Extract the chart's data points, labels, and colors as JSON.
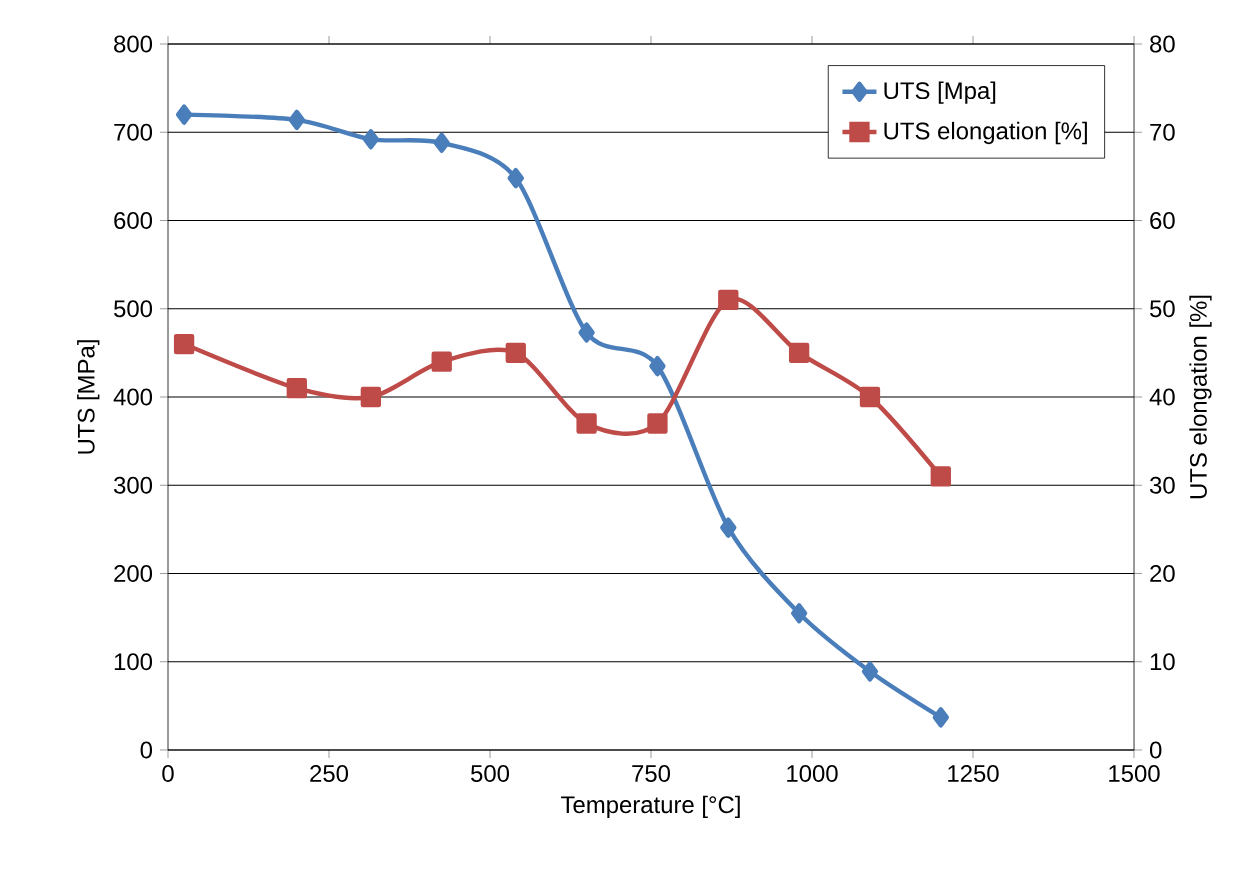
{
  "chart_data": {
    "type": "line",
    "xlabel": "Temperature [°C]",
    "ylabel": "UTS [MPa]",
    "y2label": "UTS elongation [%]",
    "x": [
      25,
      200,
      315,
      425,
      540,
      650,
      760,
      870,
      980,
      1090,
      1200
    ],
    "series": [
      {
        "name": "UTS [Mpa]",
        "color": "#4a7ebb",
        "marker": "diamond",
        "values": [
          720,
          714,
          692,
          688,
          648,
          473,
          435,
          252,
          155,
          89,
          37
        ]
      },
      {
        "name": "UTS elongation [%]",
        "color": "#be4b48",
        "marker": "square",
        "axis": "y2",
        "values": [
          46,
          41,
          40,
          44,
          45,
          37,
          37,
          51,
          45,
          40,
          31
        ]
      }
    ],
    "xlim": [
      0,
      1500
    ],
    "xticks": [
      0,
      250,
      500,
      750,
      1000,
      1250,
      1500
    ],
    "ylim": [
      0,
      800
    ],
    "yticks": [
      0,
      100,
      200,
      300,
      400,
      500,
      600,
      700,
      800
    ],
    "y2lim": [
      0,
      80
    ],
    "y2ticks": [
      0,
      10,
      20,
      30,
      40,
      50,
      60,
      70,
      80
    ],
    "grid": "y",
    "legend": "top right"
  }
}
